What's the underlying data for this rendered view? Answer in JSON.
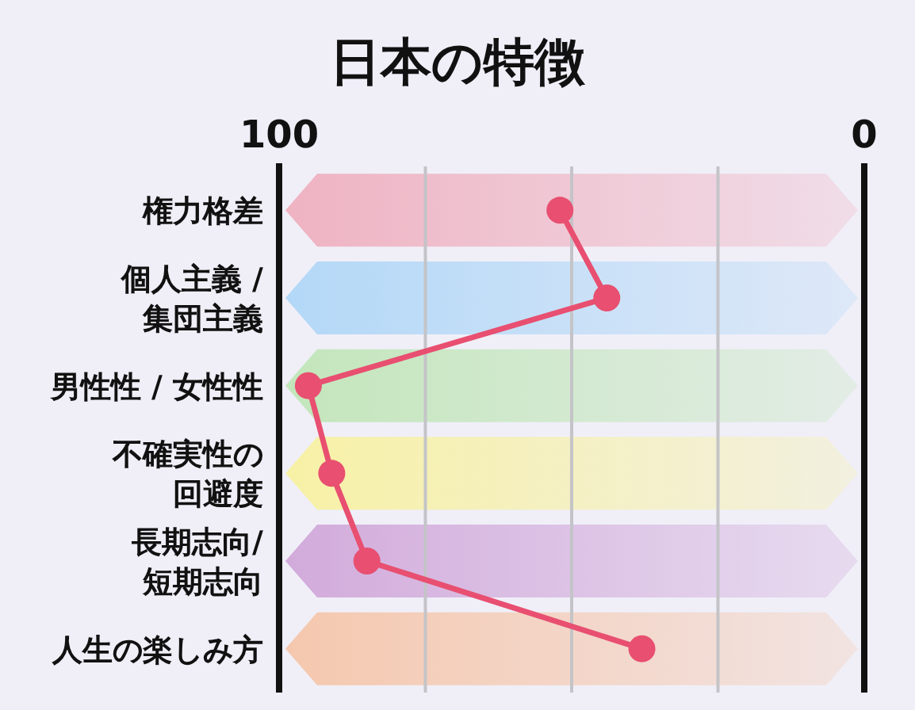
{
  "chart_data": {
    "type": "line",
    "title": "日本の特徴",
    "orientation": "horizontal",
    "categories": [
      "権力格差",
      "個人主義 / 集団主義",
      "男性性 / 女性性",
      "不確実性の回避度",
      "長期志向/短期志向",
      "人生の楽しみ方"
    ],
    "values": [
      52,
      44,
      95,
      91,
      85,
      38
    ],
    "color": "#e84f70",
    "xlim": [
      100,
      0
    ],
    "xticks": [
      100,
      {
        "value": 75,
        "label": null
      },
      {
        "value": 50,
        "label": null
      },
      {
        "value": 25,
        "label": null
      },
      0
    ],
    "grid": "x",
    "marker": "circle"
  }
}
